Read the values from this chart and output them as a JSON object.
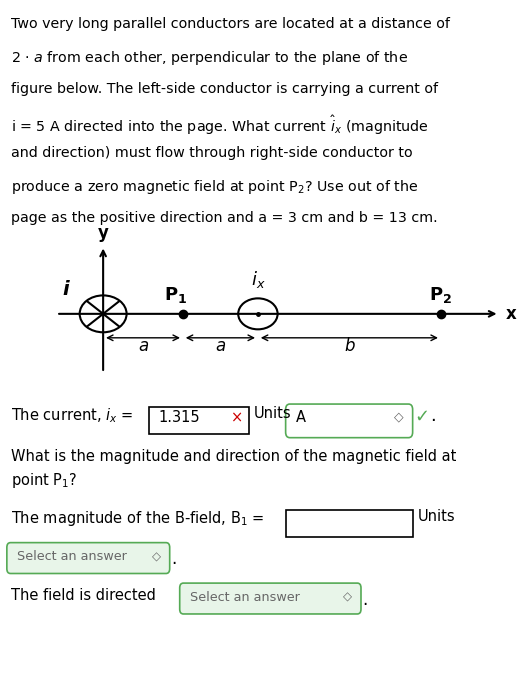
{
  "bg_color": "#ffffff",
  "text_color": "#000000",
  "problem_lines": [
    "Two very long parallel conductors are located at a distance of",
    "2 · $a$ from each other, perpendicular to the plane of the",
    "figure below. The left-side conductor is carrying a current of",
    "i = 5 A directed into the page. What current $\\hat{i}_x$ (magnitude",
    "and direction) must flow through right-side conductor to",
    "produce a zero magnetic field at point P$_2$? Use out of the",
    "page as the positive direction and a = 3 cm and b = 13 cm."
  ],
  "diag": {
    "xlim": [
      0,
      10
    ],
    "ylim": [
      0,
      4
    ],
    "axis_y": 2.0,
    "conductor_left_x": 1.3,
    "conductor_left_r": 0.5,
    "conductor_right_x": 4.6,
    "conductor_right_r": 0.42,
    "P1_x": 3.0,
    "P2_x": 8.5,
    "arr_y": 1.35
  },
  "answer_value": "1.315",
  "units_value": "A",
  "green_color": "#55aa55",
  "green_bg": "#e8f5e9",
  "red_color": "#cc0000",
  "gray_color": "#666666"
}
